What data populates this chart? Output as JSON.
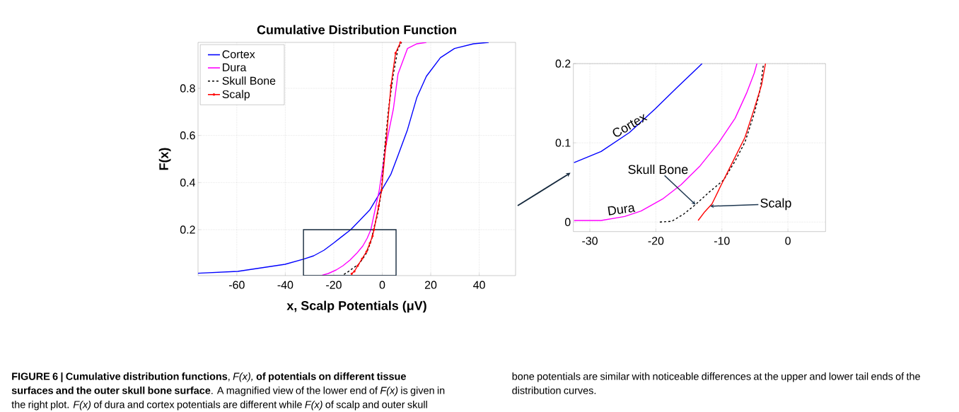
{
  "chart_data": [
    {
      "type": "line",
      "title": "Cumulative Distribution Function",
      "xlabel": "x, Scalp Potentials (μV)",
      "ylabel": "F(x)",
      "xlim": [
        -76,
        55
      ],
      "ylim": [
        0.005,
        0.995
      ],
      "xticks": [
        -60,
        -40,
        -20,
        0,
        20,
        40
      ],
      "yticks": [
        0.2,
        0.4,
        0.6,
        0.8
      ],
      "grid": true,
      "legend": "top left",
      "series": [
        {
          "name": "Cortex",
          "color": "#0000ff",
          "x": [
            -76,
            -59.6,
            -40.1,
            -32.4,
            -28.3,
            -24,
            -20.1,
            -16.9,
            -13,
            -5.2,
            -0.3,
            3.6,
            6.5,
            10.4,
            14.3,
            18.2,
            24,
            29.8,
            37.6,
            43.9
          ],
          "values": [
            0.015,
            0.023,
            0.053,
            0.075,
            0.089,
            0.113,
            0.143,
            0.169,
            0.2,
            0.283,
            0.367,
            0.436,
            0.515,
            0.624,
            0.762,
            0.851,
            0.93,
            0.969,
            0.989,
            0.995
          ]
        },
        {
          "name": "Dura",
          "color": "#ff00ff",
          "x": [
            -24.75,
            -22.25,
            -19,
            -16.2,
            -13.3,
            -10.5,
            -8,
            -6.2,
            -4.7,
            -1.25,
            1.66,
            4.6,
            6.5,
            10.4,
            14.3,
            18.2
          ],
          "values": [
            0.007,
            0.014,
            0.029,
            0.047,
            0.071,
            0.1,
            0.131,
            0.164,
            0.2,
            0.367,
            0.564,
            0.713,
            0.861,
            0.969,
            0.989,
            0.995
          ]
        },
        {
          "name": "Skull Bone",
          "color": "#000000",
          "line_style": "dashed",
          "x": [
            -15.8,
            -14,
            -11.9,
            -9.75,
            -8,
            -6.5,
            -5.1,
            -4.2,
            -3.7,
            -2,
            -0.3,
            0.7,
            2.6,
            4.6,
            6.5,
            8
          ],
          "values": [
            0.01,
            0.022,
            0.038,
            0.053,
            0.077,
            0.101,
            0.137,
            0.167,
            0.2,
            0.26,
            0.367,
            0.515,
            0.713,
            0.861,
            0.969,
            0.995
          ]
        },
        {
          "name": "Scalp",
          "color": "#ff0000",
          "marker": "circle",
          "x": [
            -12.6,
            -11.5,
            -10.1,
            -8.3,
            -6.5,
            -5.1,
            -4,
            -3.4,
            -1.5,
            -0.3,
            1.5,
            3.6,
            5.5,
            7.5
          ],
          "values": [
            0.013,
            0.023,
            0.047,
            0.077,
            0.107,
            0.143,
            0.173,
            0.2,
            0.3,
            0.367,
            0.564,
            0.812,
            0.95,
            0.995
          ]
        }
      ],
      "annotations": [
        "**FIGURE 6 | Cumulative distribution functions**, *F(x),* **of potentials on different tissue surfaces and the outer skull bone surface**. A magnified view of the lower end of *F(x)* is given in the right plot. *F(x)* of dura and cortex potentials are different while *F(x)* of scalp and outer skull bone potentials are similar with noticeable differences at the upper and lower tail ends of the distribution curves."
      ]
    },
    {
      "type": "line",
      "xlim": [
        -32.5,
        5.7
      ],
      "ylim": [
        -0.012,
        0.2
      ],
      "xticks": [
        -30,
        -20,
        -10,
        0
      ],
      "yticks": [
        0,
        0.1,
        0.2
      ],
      "grid": true,
      "series": [
        {
          "color": "#0000ff",
          "x": [
            -32.4,
            -28.3,
            -24,
            -20.1,
            -16.9,
            -13
          ],
          "values": [
            0.075,
            0.089,
            0.113,
            0.143,
            0.169,
            0.2
          ]
        },
        {
          "color": "#ff00ff",
          "x": [
            -32.4,
            -28.3,
            -24.75,
            -22.25,
            -19,
            -16.2,
            -13.3,
            -10.5,
            -8,
            -6.2,
            -5.1,
            -4.7
          ],
          "values": [
            0.002,
            0.002,
            0.007,
            0.014,
            0.029,
            0.047,
            0.071,
            0.1,
            0.131,
            0.164,
            0.188,
            0.2
          ]
        },
        {
          "color": "#000000",
          "line_style": "dashed",
          "x": [
            -19.4,
            -17.6,
            -15.8,
            -14,
            -11.9,
            -9.75,
            -8,
            -6.5,
            -5.1,
            -4.2,
            -3.7
          ],
          "values": [
            0,
            0.001,
            0.01,
            0.022,
            0.038,
            0.053,
            0.077,
            0.101,
            0.137,
            0.167,
            0.2
          ]
        },
        {
          "color": "#ff0000",
          "x": [
            -13.6,
            -12.6,
            -11.5,
            -10.1,
            -8.3,
            -6.5,
            -5.1,
            -4,
            -3.4
          ],
          "values": [
            0.002,
            0.013,
            0.023,
            0.047,
            0.077,
            0.107,
            0.143,
            0.173,
            0.2
          ]
        }
      ],
      "annotations": [
        {
          "text": "Cortex",
          "x": -24,
          "y": 0.113
        },
        {
          "text": "Dura",
          "x": -26,
          "y": 0.006
        },
        {
          "text": "Skull Bone",
          "x": -14,
          "y": 0.022
        },
        {
          "text": "Scalp",
          "x": -11.8,
          "y": 0.02
        }
      ]
    }
  ]
}
